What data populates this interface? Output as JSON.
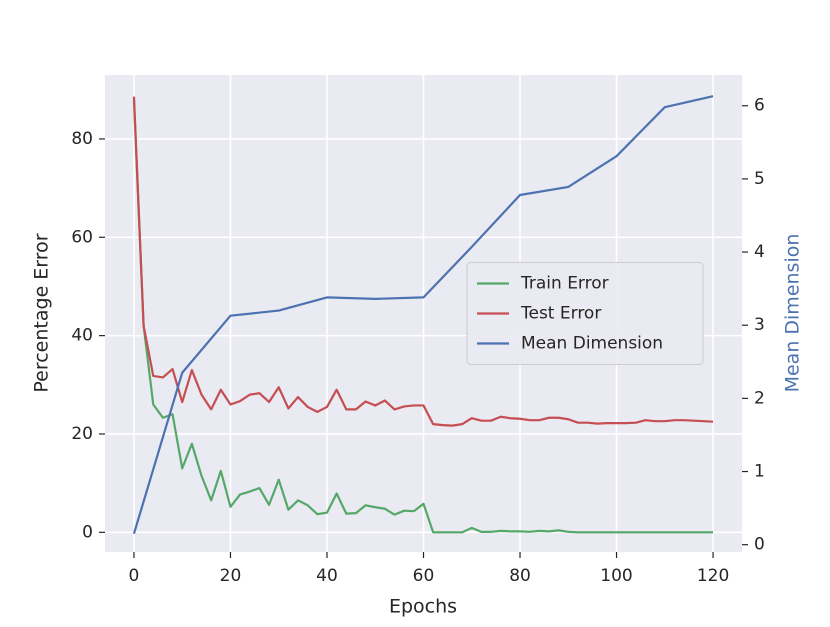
{
  "chart_data": {
    "type": "line",
    "xlabel": "Epochs",
    "ylabel": "Percentage Error",
    "y2label": "Mean Dimension",
    "xlim": [
      -6,
      126
    ],
    "ylim": [
      -4,
      93
    ],
    "y2lim": [
      -0.1,
      6.42
    ],
    "xticks": [
      0,
      20,
      40,
      60,
      80,
      100,
      120
    ],
    "yticks": [
      0,
      20,
      40,
      60,
      80
    ],
    "y2ticks": [
      0,
      1,
      2,
      3,
      4,
      5,
      6
    ],
    "grid": true,
    "legend": "center right",
    "y2color": "#4c72b0",
    "series": [
      {
        "name": "Train Error",
        "color": "#55a868",
        "x": [
          0,
          2,
          4,
          6,
          8,
          10,
          12,
          14,
          16,
          18,
          20,
          22,
          24,
          26,
          28,
          30,
          32,
          34,
          36,
          38,
          40,
          42,
          44,
          46,
          48,
          50,
          52,
          54,
          56,
          58,
          60,
          62,
          64,
          66,
          68,
          70,
          72,
          74,
          76,
          78,
          80,
          82,
          84,
          86,
          88,
          90,
          92,
          94,
          96,
          98,
          100,
          102,
          104,
          106,
          108,
          110,
          112,
          114,
          116,
          118,
          120
        ],
        "values": [
          88,
          42,
          26,
          23.3,
          24,
          13,
          18,
          11.5,
          6.5,
          12.5,
          5.2,
          7.7,
          8.3,
          9,
          5.6,
          10.7,
          4.6,
          6.5,
          5.5,
          3.7,
          4,
          7.9,
          3.8,
          3.9,
          5.5,
          5.1,
          4.8,
          3.6,
          4.4,
          4.3,
          5.8,
          0,
          0,
          0,
          0,
          0.9,
          0.1,
          0.1,
          0.3,
          0.2,
          0.2,
          0.1,
          0.3,
          0.2,
          0.4,
          0.1,
          0,
          0,
          0,
          0,
          0,
          0,
          0,
          0,
          0,
          0,
          0,
          0,
          0,
          0,
          0
        ]
      },
      {
        "name": "Test Error",
        "color": "#c44e52",
        "x": [
          0,
          2,
          4,
          6,
          8,
          10,
          12,
          14,
          16,
          18,
          20,
          22,
          24,
          26,
          28,
          30,
          32,
          34,
          36,
          38,
          40,
          42,
          44,
          46,
          48,
          50,
          52,
          54,
          56,
          58,
          60,
          62,
          64,
          66,
          68,
          70,
          72,
          74,
          76,
          78,
          80,
          82,
          84,
          86,
          88,
          90,
          92,
          94,
          96,
          98,
          100,
          102,
          104,
          106,
          108,
          110,
          112,
          114,
          116,
          118,
          120
        ],
        "values": [
          88.6,
          42,
          31.8,
          31.5,
          33.2,
          26.5,
          33,
          28,
          25,
          29,
          26,
          26.7,
          28,
          28.3,
          26.5,
          29.5,
          25.2,
          27.5,
          25.5,
          24.5,
          25.5,
          29,
          25,
          25,
          26.6,
          25.8,
          26.8,
          25,
          25.6,
          25.8,
          25.8,
          22,
          21.8,
          21.7,
          22,
          23.2,
          22.7,
          22.7,
          23.5,
          23.2,
          23.1,
          22.8,
          22.8,
          23.3,
          23.3,
          23,
          22.3,
          22.3,
          22.1,
          22.2,
          22.2,
          22.2,
          22.3,
          22.8,
          22.6,
          22.6,
          22.8,
          22.8,
          22.7,
          22.6,
          22.5
        ]
      },
      {
        "name": "Mean Dimension",
        "color": "#4c72b0",
        "axis": "y2",
        "x": [
          0,
          10,
          20,
          30,
          40,
          50,
          60,
          70,
          80,
          90,
          100,
          110,
          120
        ],
        "values": [
          0.15,
          2.35,
          3.13,
          3.2,
          3.38,
          3.36,
          3.38,
          4.07,
          4.78,
          4.89,
          5.31,
          5.98,
          6.13
        ]
      }
    ]
  }
}
